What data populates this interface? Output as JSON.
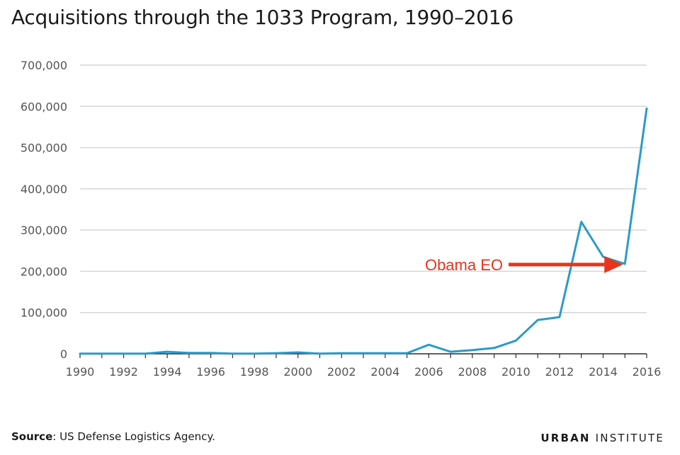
{
  "chart_data": {
    "type": "line",
    "title": "Acquisitions through the 1033 Program, 1990–2016",
    "xlabel": "",
    "ylabel": "",
    "xlim": [
      1990,
      2016
    ],
    "ylim": [
      0,
      700000
    ],
    "grid": true,
    "y_ticks": [
      0,
      100000,
      200000,
      300000,
      400000,
      500000,
      600000,
      700000
    ],
    "y_tick_labels": [
      "0",
      "100,000",
      "200,000",
      "300,000",
      "400,000",
      "500,000",
      "600,000",
      "700,000"
    ],
    "x_ticks": [
      1990,
      1992,
      1994,
      1996,
      1998,
      2000,
      2002,
      2004,
      2006,
      2008,
      2010,
      2012,
      2014,
      2016
    ],
    "x_tick_labels": [
      "1990",
      "1992",
      "1994",
      "1996",
      "1998",
      "2000",
      "2002",
      "2004",
      "2006",
      "2008",
      "2010",
      "2012",
      "2014",
      "2016"
    ],
    "line_color": "#2b9ac8",
    "series": [
      {
        "x": [
          1990,
          1991,
          1992,
          1993,
          1994,
          1995,
          1996,
          1997,
          1998,
          1999,
          2000,
          2001,
          2002,
          2003,
          2004,
          2005,
          2006,
          2007,
          2008,
          2009,
          2010,
          2011,
          2012,
          2013,
          2014,
          2015,
          2016
        ],
        "values": [
          500,
          500,
          500,
          500,
          5000,
          2000,
          2000,
          500,
          500,
          1500,
          3500,
          500,
          1500,
          1500,
          1500,
          1500,
          22000,
          5000,
          9000,
          14000,
          32000,
          82000,
          89000,
          320000,
          235000,
          218000,
          595000
        ]
      }
    ],
    "annotations": [
      {
        "text": "Obama EO",
        "target_x": 2015,
        "target_y": 218000,
        "color": "#e8341c"
      }
    ]
  },
  "footer": {
    "source_label": "Source",
    "source_text": ": US Defense Logistics Agency."
  },
  "logo": {
    "part1": "URBAN",
    "part2": " INSTITUTE"
  }
}
